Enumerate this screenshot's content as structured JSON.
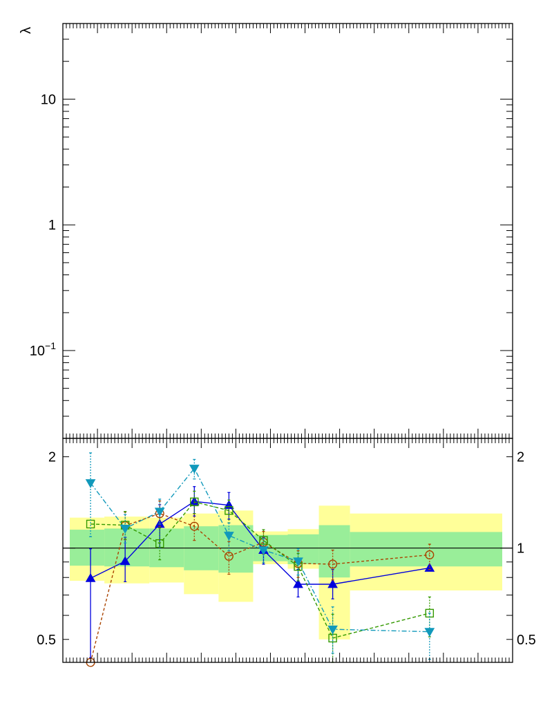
{
  "chart_data": [
    {
      "type": "line",
      "panel": "upper",
      "ylabel": "λ",
      "yscale": "log",
      "ylim": [
        0.02,
        40
      ],
      "xlim": [
        0,
        13
      ],
      "yticks": [
        {
          "value": 10,
          "label": "10"
        },
        {
          "value": 1,
          "label": "1"
        },
        {
          "value": 0.1,
          "label": "10",
          "sup": "−1"
        }
      ],
      "series": []
    },
    {
      "type": "line",
      "panel": "lower-ratio",
      "yscale": "log",
      "ylim": [
        0.42,
        2.3
      ],
      "xlim": [
        0,
        13
      ],
      "reference_line": 1.0,
      "yticks_left": [
        {
          "value": 2,
          "label": "2"
        },
        {
          "value": 0.5,
          "label": "0.5"
        }
      ],
      "yticks_right": [
        {
          "value": 2,
          "label": "2"
        },
        {
          "value": 1,
          "label": "1"
        },
        {
          "value": 0.5,
          "label": "0.5"
        }
      ],
      "bands": [
        {
          "x0": 0.2,
          "x1": 1.2,
          "y1": [
            0.875,
            1.15
          ],
          "y2": [
            0.78,
            1.26
          ],
          "green": "#99ee99",
          "yellow": "#ffff99"
        },
        {
          "x0": 1.2,
          "x1": 2.5,
          "y1": [
            0.87,
            1.16
          ],
          "y2": [
            0.765,
            1.27
          ],
          "green": "#99ee99",
          "yellow": "#ffff99"
        },
        {
          "x0": 2.5,
          "x1": 3.5,
          "y1": [
            0.865,
            1.16
          ],
          "y2": [
            0.77,
            1.26
          ],
          "green": "#99ee99",
          "yellow": "#ffff99"
        },
        {
          "x0": 3.5,
          "x1": 4.5,
          "y1": [
            0.845,
            1.18
          ],
          "y2": [
            0.705,
            1.3
          ],
          "green": "#99ee99",
          "yellow": "#ffff99"
        },
        {
          "x0": 4.5,
          "x1": 5.5,
          "y1": [
            0.83,
            1.19
          ],
          "y2": [
            0.665,
            1.33
          ],
          "green": "#99ee99",
          "yellow": "#ffff99"
        },
        {
          "x0": 5.5,
          "x1": 6.5,
          "y1": [
            0.905,
            1.105
          ],
          "y2": [
            0.885,
            1.135
          ],
          "green": "#99ee99",
          "yellow": "#ffff99"
        },
        {
          "x0": 6.5,
          "x1": 7.4,
          "y1": [
            0.885,
            1.11
          ],
          "y2": [
            0.855,
            1.155
          ],
          "green": "#99ee99",
          "yellow": "#ffff99"
        },
        {
          "x0": 7.4,
          "x1": 8.3,
          "y1": [
            0.8,
            1.19
          ],
          "y2": [
            0.5,
            1.38
          ],
          "green": "#99ee99",
          "yellow": "#ffff99"
        },
        {
          "x0": 8.3,
          "x1": 12.7,
          "y1": [
            0.87,
            1.13
          ],
          "y2": [
            0.725,
            1.3
          ],
          "green": "#99ee99",
          "yellow": "#ffff99"
        }
      ],
      "series": [
        {
          "style": "blue-solid-triangle-up",
          "color": "#0000dd",
          "marker": "triangle-up",
          "dash": "solid",
          "x": [
            0.8,
            1.8,
            2.8,
            3.8,
            4.8,
            5.8,
            6.8,
            7.8,
            10.6
          ],
          "y": [
            0.795,
            0.905,
            1.2,
            1.425,
            1.385,
            0.985,
            0.76,
            0.76,
            0.86
          ],
          "err": [
            [
              0.36,
              0.2
            ],
            [
              0.13,
              0.18
            ],
            [
              0.2,
              0.19
            ],
            [
              0.15,
              0.17
            ],
            [
              0.14,
              0.14
            ],
            [
              0.1,
              0.1
            ],
            [
              0.07,
              0.09
            ],
            [
              0.08,
              0.09
            ],
            [
              0.0,
              0.0
            ]
          ]
        },
        {
          "style": "brown-dashed-circle",
          "color": "#aa4400",
          "marker": "circle-open",
          "dash": "4,3",
          "x": [
            0.8,
            1.8,
            2.8,
            3.8,
            4.8,
            5.8,
            6.8,
            7.8,
            10.6
          ],
          "y": [
            0.42,
            1.185,
            1.3,
            1.18,
            0.94,
            1.045,
            0.89,
            0.885,
            0.95
          ],
          "err": [
            [
              0.0,
              0.0
            ],
            [
              0.12,
              0.13
            ],
            [
              0.12,
              0.13
            ],
            [
              0.12,
              0.12
            ],
            [
              0.12,
              0.11
            ],
            [
              0.09,
              0.09
            ],
            [
              0.09,
              0.09
            ],
            [
              0.1,
              0.1
            ],
            [
              0.1,
              0.08
            ]
          ]
        },
        {
          "style": "green-dashed-square",
          "color": "#339900",
          "marker": "square-open",
          "dash": "5,3",
          "x": [
            0.8,
            1.8,
            2.8,
            3.8,
            4.8,
            5.8,
            6.8,
            7.8,
            10.6
          ],
          "y": [
            1.2,
            1.19,
            1.035,
            1.42,
            1.33,
            1.06,
            0.87,
            0.505,
            0.61
          ],
          "err": [
            [
              0.0,
              0.0
            ],
            [
              0.12,
              0.13
            ],
            [
              0.12,
              0.13
            ],
            [
              0.12,
              0.12
            ],
            [
              0.12,
              0.11
            ],
            [
              0.09,
              0.09
            ],
            [
              0.09,
              0.09
            ],
            [
              0.1,
              0.1
            ],
            [
              0.1,
              0.08
            ]
          ]
        },
        {
          "style": "cyan-dashdot-triangle-down",
          "color": "#1199bb",
          "marker": "triangle-down",
          "dash": "7,3,2,3",
          "x": [
            0.8,
            1.8,
            2.8,
            3.8,
            4.8,
            5.8,
            6.8,
            7.8,
            10.6
          ],
          "y": [
            1.64,
            1.16,
            1.32,
            1.83,
            1.1,
            0.985,
            0.905,
            0.54,
            0.53
          ],
          "err": [
            [
              0.55,
              0.42
            ],
            [
              0.12,
              0.13
            ],
            [
              0.12,
              0.13
            ],
            [
              0.14,
              0.13
            ],
            [
              0.12,
              0.11
            ],
            [
              0.09,
              0.09
            ],
            [
              0.09,
              0.09
            ],
            [
              0.09,
              0.1
            ],
            [
              0.1,
              0.08
            ]
          ]
        }
      ]
    }
  ]
}
